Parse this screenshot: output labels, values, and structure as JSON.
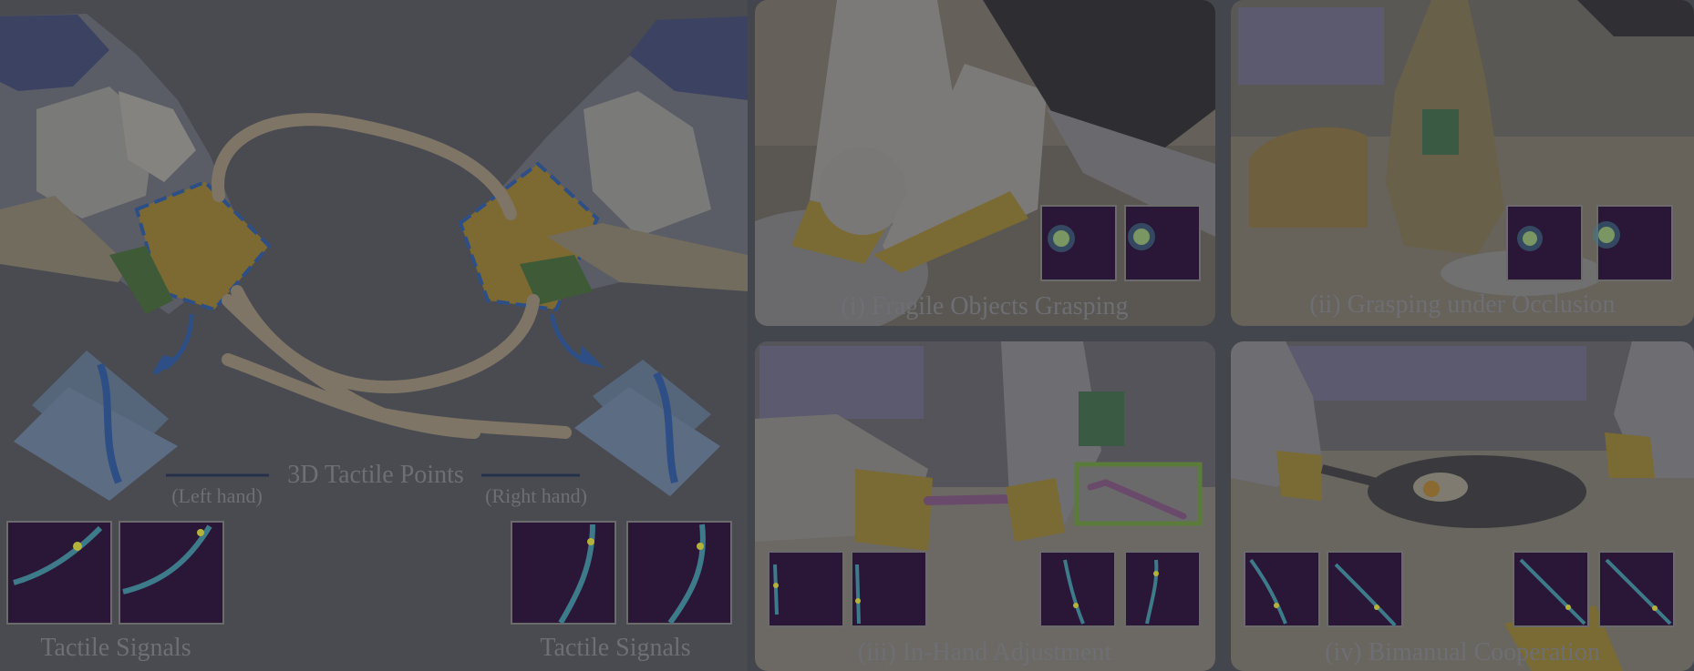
{
  "left_figure": {
    "title": "3D Tactile Points",
    "left_hand_label": "(Left hand)",
    "right_hand_label": "(Right hand)",
    "left_signals_label": "Tactile Signals",
    "right_signals_label": "Tactile Signals"
  },
  "panels": [
    {
      "caption": "(i) Fragile Objects Grasping"
    },
    {
      "caption": "(ii) Grasping under Occlusion"
    },
    {
      "caption": "(iii) In-Hand Adjustment"
    },
    {
      "caption": "(iv) Bimanual Cooperation"
    }
  ],
  "colors": {
    "overlay": "#44464d",
    "heatmap_bg": "#2a1738",
    "heatmap_hot": "#b5b23c",
    "heatmap_mid": "#3d7a8a",
    "annotation_blue": "#2d4f86",
    "highlight_green": "#5a7b3a"
  }
}
